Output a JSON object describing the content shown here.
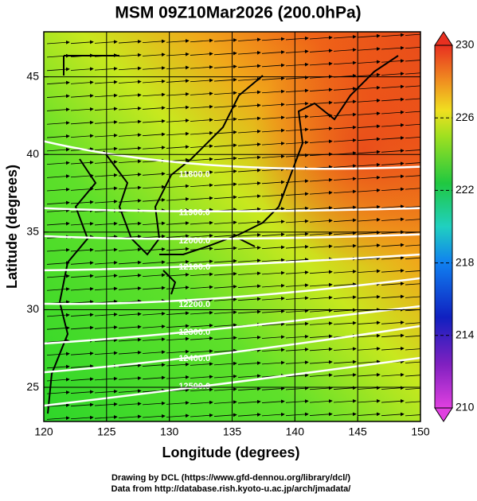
{
  "chart_data": {
    "type": "contour",
    "title": "MSM 09Z10Mar2026 (200.0hPa)",
    "xlabel": "Longitude (degrees)",
    "ylabel": "Latitude  (degrees)",
    "xlim": [
      120,
      150
    ],
    "xticks": [
      120,
      125,
      130,
      135,
      140,
      145,
      150
    ],
    "ylim": [
      22.8,
      47.9
    ],
    "yticks": [
      25,
      30,
      35,
      40,
      45
    ],
    "grid": true,
    "colorbar": {
      "lim": [
        210,
        230
      ],
      "ticks": [
        210,
        214,
        218,
        222,
        226,
        230
      ]
    },
    "contours": [
      {
        "label": "11800.0",
        "lon": [
          120,
          132,
          150
        ],
        "lat": [
          40.85,
          38.59,
          39.21
        ]
      },
      {
        "label": "11900.0",
        "lon": [
          120,
          132,
          150
        ],
        "lat": [
          36.54,
          36.13,
          36.54
        ]
      },
      {
        "label": "12000.0",
        "lon": [
          120,
          132,
          150
        ],
        "lat": [
          34.74,
          34.33,
          34.85
        ]
      },
      {
        "label": "12100.0",
        "lon": [
          120,
          132,
          150
        ],
        "lat": [
          32.54,
          32.64,
          33.56
        ]
      },
      {
        "label": "12200.0",
        "lon": [
          120,
          132,
          150
        ],
        "lat": [
          30.38,
          30.23,
          32.03
        ]
      },
      {
        "label": "12300.0",
        "lon": [
          120,
          132,
          150
        ],
        "lat": [
          27.82,
          28.44,
          30.23
        ]
      },
      {
        "label": "12400.0",
        "lon": [
          120,
          132,
          150
        ],
        "lat": [
          25.97,
          26.74,
          28.95
        ]
      },
      {
        "label": "12500.0",
        "lon": [
          120,
          132,
          150
        ],
        "lat": [
          23.82,
          24.95,
          26.9
        ]
      }
    ],
    "notes": [
      "Drawing by DCL (https://www.gfd-dennou.org/library/dcl/)",
      "Data from http://database.rish.kyoto-u.ac.jp/arch/jmadata/"
    ]
  }
}
